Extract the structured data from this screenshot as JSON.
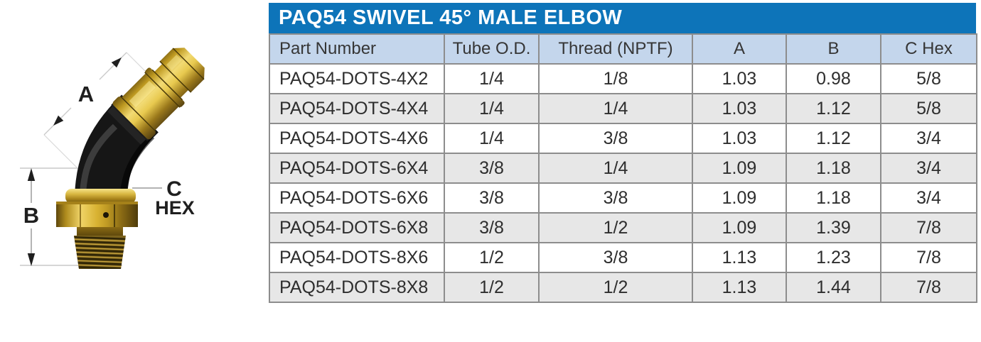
{
  "title": "PAQ54 SWIVEL 45° MALE ELBOW",
  "diagram": {
    "description": "technical-drawing-45-degree-swivel-male-elbow-fitting",
    "dim_a_label": "A",
    "dim_b_label": "B",
    "dim_c_label": "C",
    "hex_label": "HEX"
  },
  "table": {
    "columns": [
      "Part Number",
      "Tube O.D.",
      "Thread (NPTF)",
      "A",
      "B",
      "C Hex"
    ],
    "rows": [
      [
        "PAQ54-DOTS-4X2",
        "1/4",
        "1/8",
        "1.03",
        "0.98",
        "5/8"
      ],
      [
        "PAQ54-DOTS-4X4",
        "1/4",
        "1/4",
        "1.03",
        "1.12",
        "5/8"
      ],
      [
        "PAQ54-DOTS-4X6",
        "1/4",
        "3/8",
        "1.03",
        "1.12",
        "3/4"
      ],
      [
        "PAQ54-DOTS-6X4",
        "3/8",
        "1/4",
        "1.09",
        "1.18",
        "3/4"
      ],
      [
        "PAQ54-DOTS-6X6",
        "3/8",
        "3/8",
        "1.09",
        "1.18",
        "3/4"
      ],
      [
        "PAQ54-DOTS-6X8",
        "3/8",
        "1/2",
        "1.09",
        "1.39",
        "7/8"
      ],
      [
        "PAQ54-DOTS-8X6",
        "1/2",
        "3/8",
        "1.13",
        "1.23",
        "7/8"
      ],
      [
        "PAQ54-DOTS-8X8",
        "1/2",
        "1/2",
        "1.13",
        "1.44",
        "7/8"
      ]
    ]
  },
  "colors": {
    "title_bar": "#0d74b9",
    "header_bg": "#c4d6ec",
    "row_alt": "#e7e7e7",
    "border": "#8d8d8d",
    "brass": "#d8b232",
    "black_body": "#161616"
  }
}
